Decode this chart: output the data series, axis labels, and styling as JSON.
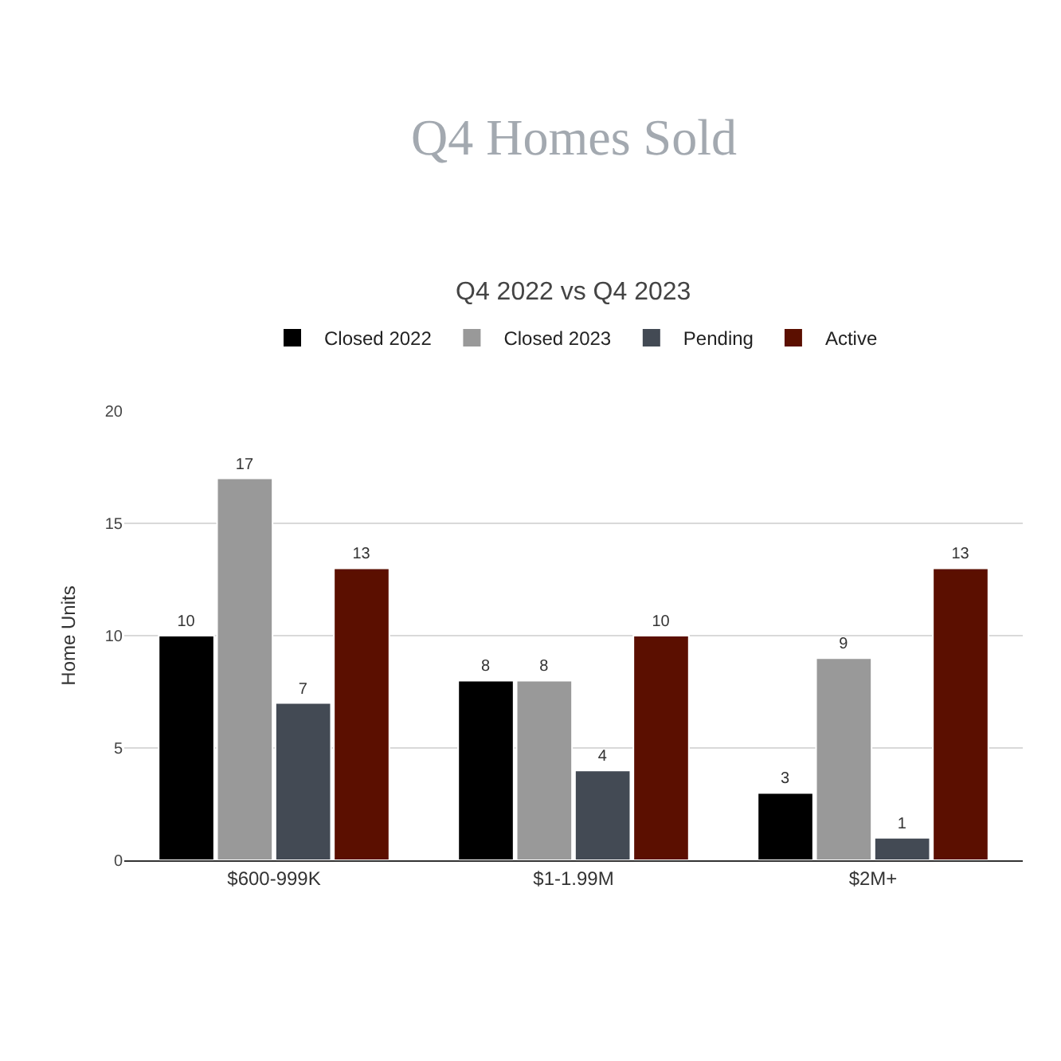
{
  "chart_data": {
    "type": "bar",
    "title": "Q4 Homes Sold",
    "subtitle": "Q4 2022 vs Q4 2023",
    "ylabel": "Home Units",
    "categories": [
      "$600-999K",
      "$1-1.99M",
      "$2M+"
    ],
    "series": [
      {
        "name": "Closed 2022",
        "color": "#000000",
        "values": [
          10,
          8,
          3
        ]
      },
      {
        "name": "Closed 2023",
        "color": "#999999",
        "values": [
          17,
          8,
          9
        ]
      },
      {
        "name": "Pending",
        "color": "#434a54",
        "values": [
          7,
          4,
          1
        ]
      },
      {
        "name": "Active",
        "color": "#5b0f00",
        "values": [
          13,
          10,
          13
        ]
      }
    ],
    "ylim": [
      0,
      20
    ],
    "yticks": [
      0,
      5,
      10,
      15,
      20
    ],
    "grid": "y",
    "legend": "top",
    "data_labels": true
  }
}
